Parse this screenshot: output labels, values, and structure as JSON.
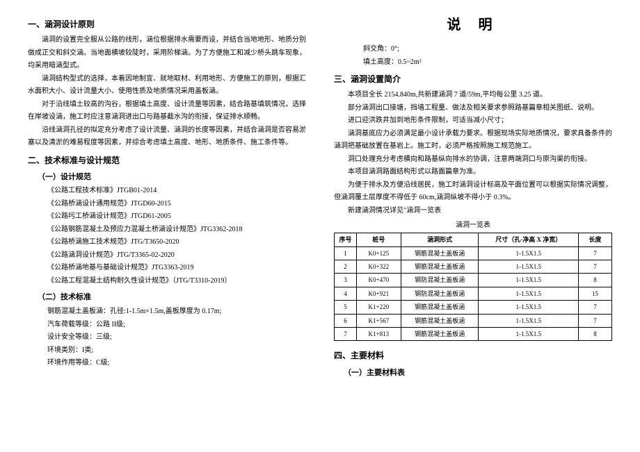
{
  "title": "说 明",
  "left": {
    "s1_h": "一、涵洞设计原则",
    "s1_p1": "涵洞的设置完全服从公路的线形，涵位根据排水需要而设，并结合当地地形、地质分别做成正交和斜交涵。当地面横坡较陡时，采用阶梯涵。为了方便施工和减少桥头跳车现象，均采用暗涵型式。",
    "s1_p2": "涵洞结构型式的选择，本着因地制宜、就地取材、利用地形、方便施工的原则，根据汇水面积大小、设计流量大小、使用性质及地质情况采用盖板涵。",
    "s1_p3": "对于沿线填土较高的沟谷，根据填土高度、设计流量等因素，结合路基填筑情况，选择在岸坡设涵，施工时应注意涵洞进出口与路基截水沟的衔接，保证排水顺畅。",
    "s1_p4": "沿线涵洞孔径的拟定充分考虑了设计流量、涵洞的长度等因素，并结合涵洞是否容易淤塞以及清淤的难易程度等因素，并综合考虑填土高度、地形、地质条件、施工条件等。",
    "s2_h": "二、技术标准与设计规范",
    "s2_1_h": "（一）设计规范",
    "spec1": "《公路工程技术标准》JTGB01-2014",
    "spec2": "《公路桥涵设计通用规范》JTGD60-2015",
    "spec3": "《公路圬工桥涵设计规范》JTGD61-2005",
    "spec4": "《公路钢筋混凝土及预应力混凝土桥涵设计规范》JTG3362-2018",
    "spec5": "《公路桥涵施工技术规范》JTG/T3650-2020",
    "spec6": "《公路涵洞设计规范》JTG/T3365-02-2020",
    "spec7": "《公路桥涵地基与基础设计规范》JTG3363-2019",
    "spec8": "《公路工程混凝土结构耐久性设计规范》（JTG/T3310-2019）",
    "s2_2_h": "（二）技术标准",
    "tech1": "钢筋混凝土盖板涵：孔径:1-1.5m×1.5m,盖板厚度为 0.17m;",
    "tech2": "汽车荷载等级：公路 II级;",
    "tech3": "设计安全等级：三级;",
    "tech4": "环境类别：I类;",
    "tech5": "环境作用等级：C级;"
  },
  "right": {
    "r1": "斜交角：0°;",
    "r2": "填土高度：0.5~2m²",
    "s3_h": "三、涵洞设置简介",
    "s3_p1": "本项目全长 2154.840m,共新建涵洞 7 道/59m,平均每公里 3.25 道。",
    "s3_p2": "部分涵洞出口接塘，挡墙工程量、做法及相关要求参照路基篇章相关图纸、说明。",
    "s3_p3": "进口迎洪跌井加到地形条件限制，可适当减小尺寸；",
    "s3_p4": "涵洞基底应力必须满足最小设计承载力要求。根据现场实际地质情况，要求具备条件的涵洞把基础放置在基岩上。施工时，必须严格按照施工规范施工。",
    "s3_p5": "洞口处理充分考虑横向和路基纵向排水的协调，注意两端洞口与原沟渠的衔接。",
    "s3_p6": "本项目涵洞路面结构形式以路面篇章为准。",
    "s3_p7": "为便于排水及方便沿线居民，施工时涵洞设计标高及平面位置可以根据实际情况调整，但涵洞覆土层厚度不得低于 60cm,涵洞纵坡不得小于 0.3%。",
    "s3_p8": "新建涵洞情况详见\"涵洞一览表",
    "tbl_cap": "涵洞一览表",
    "th1": "序号",
    "th2": "桩号",
    "th3": "涵洞形式",
    "th4": "尺寸（孔-净高 X 净宽）",
    "th5": "长度",
    "rows": [
      [
        "1",
        "K0+125",
        "钢筋混凝土盖板涵",
        "1-1.5X1.5",
        "7"
      ],
      [
        "2",
        "K0+322",
        "钢筋混凝土盖板涵",
        "1-1.5X1.5",
        "7"
      ],
      [
        "3",
        "K0+470",
        "钢防混凝土盖板涵",
        "1-1.5X1.5",
        "8"
      ],
      [
        "4",
        "K0+921",
        "钢防混凝土盖板涵",
        "1-1.5X1.5",
        "15"
      ],
      [
        "5",
        "K1+220",
        "钢筋混凝土盖板涵",
        "1-1.5X1.5",
        "7"
      ],
      [
        "6",
        "K1+567",
        "钢筋混凝土盖板涵",
        "1-1.5X1.5",
        "7"
      ],
      [
        "7",
        "K1+813",
        "钢筋混凝土盖板涵",
        "1-1.5X1.5",
        "8"
      ]
    ],
    "s4_h": "四、主要材料",
    "s4_1_h": "（一）主要材料表"
  }
}
